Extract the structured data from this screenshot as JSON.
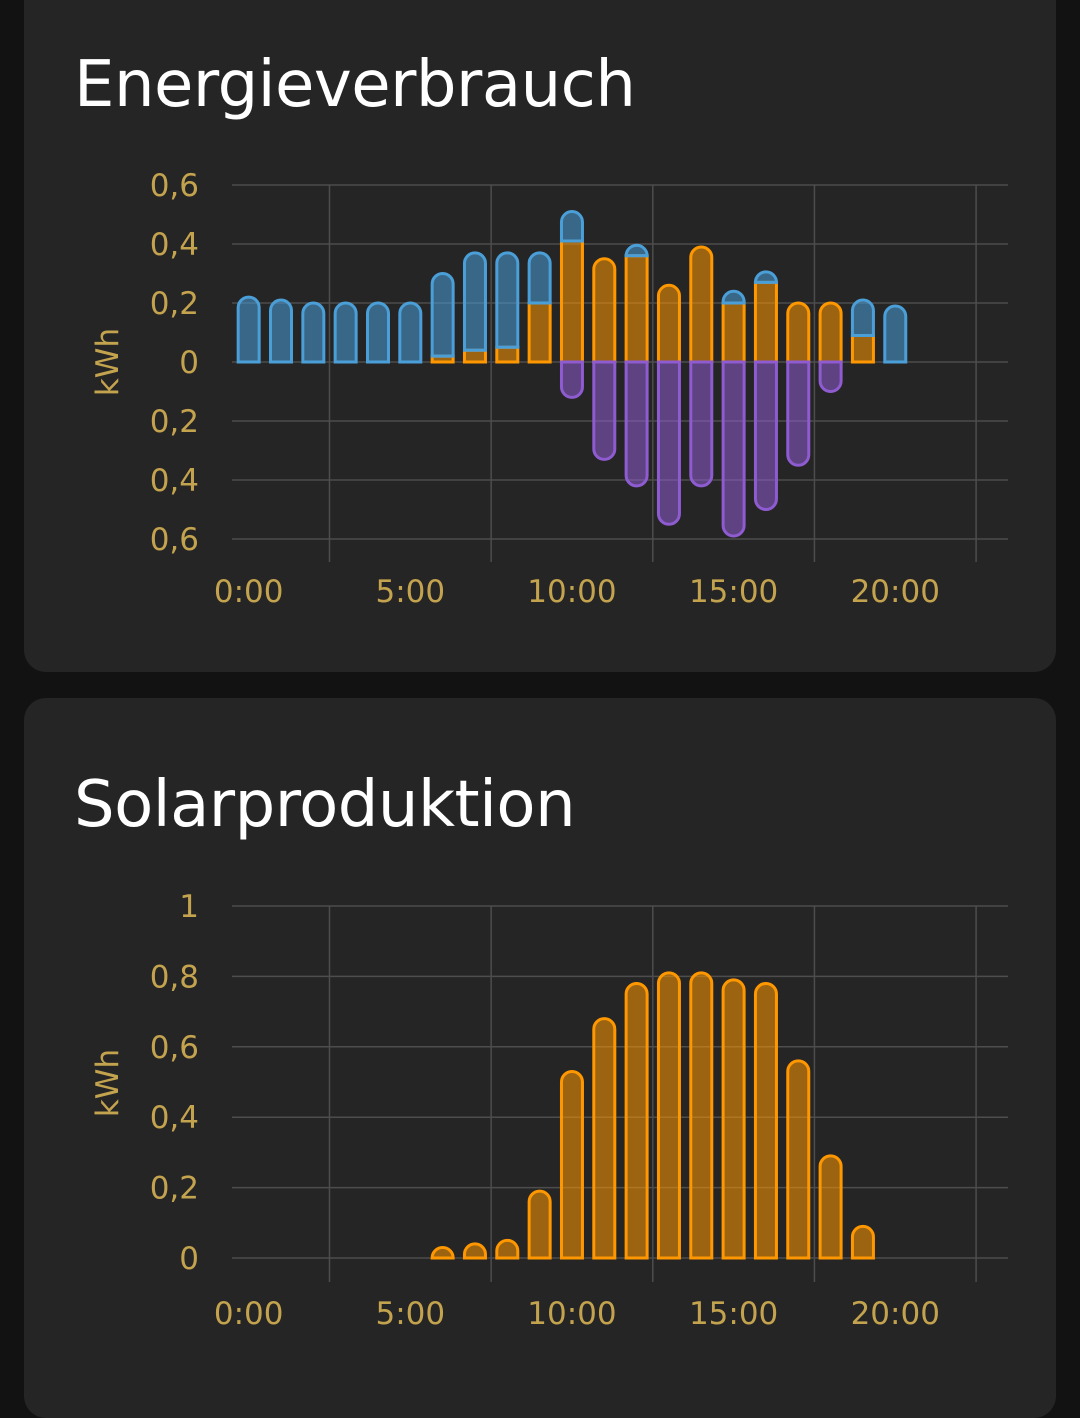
{
  "colors": {
    "grid_consumption": "#4b9fd8",
    "solar": "#ff9800",
    "return_to_grid": "#8e5bd0",
    "axis_text": "#c4a34f",
    "card_bg": "#252525",
    "page_bg": "#121212"
  },
  "energy_card": {
    "title": "Energieverbrauch",
    "chart_data": {
      "type": "bar",
      "stacked": true,
      "ylabel": "kWh",
      "ylim": [
        -0.6,
        0.6
      ],
      "y_ticks": [
        0.6,
        0.4,
        0.2,
        0,
        -0.2,
        -0.4,
        -0.6
      ],
      "y_tick_labels": [
        "0,6",
        "0,4",
        "0,2",
        "0",
        "0,2",
        "0,4",
        "0,6"
      ],
      "x_tick_labels": [
        "0:00",
        "5:00",
        "10:00",
        "15:00",
        "20:00"
      ],
      "categories": [
        "0:00",
        "1:00",
        "2:00",
        "3:00",
        "4:00",
        "5:00",
        "6:00",
        "7:00",
        "8:00",
        "9:00",
        "10:00",
        "11:00",
        "12:00",
        "13:00",
        "14:00",
        "15:00",
        "16:00",
        "17:00",
        "18:00",
        "19:00",
        "20:00"
      ],
      "series": [
        {
          "values": [
            0,
            0,
            0,
            0,
            0,
            0,
            0.02,
            0.04,
            0.05,
            0.2,
            0.41,
            0.35,
            0.36,
            0.26,
            0.39,
            0.2,
            0.27,
            0.2,
            0.2,
            0.09,
            0
          ]
        },
        {
          "values": [
            0.22,
            0.21,
            0.2,
            0.2,
            0.2,
            0.2,
            0.28,
            0.33,
            0.32,
            0.17,
            0.1,
            0,
            0.02,
            0,
            0,
            0.04,
            0.02,
            0,
            0,
            0.12,
            0.19
          ]
        },
        {
          "values": [
            0,
            0,
            0,
            0,
            0,
            0,
            0,
            0,
            0,
            0,
            -0.12,
            -0.33,
            -0.42,
            -0.55,
            -0.42,
            -0.59,
            -0.5,
            -0.35,
            -0.1,
            0,
            0
          ]
        }
      ]
    }
  },
  "solar_card": {
    "title": "Solarproduktion",
    "chart_data": {
      "type": "bar",
      "ylabel": "kWh",
      "ylim": [
        0,
        1
      ],
      "y_ticks": [
        1,
        0.8,
        0.6,
        0.4,
        0.2,
        0
      ],
      "y_tick_labels": [
        "1",
        "0,8",
        "0,6",
        "0,4",
        "0,2",
        "0"
      ],
      "x_tick_labels": [
        "0:00",
        "5:00",
        "10:00",
        "15:00",
        "20:00"
      ],
      "categories": [
        "0:00",
        "1:00",
        "2:00",
        "3:00",
        "4:00",
        "5:00",
        "6:00",
        "7:00",
        "8:00",
        "9:00",
        "10:00",
        "11:00",
        "12:00",
        "13:00",
        "14:00",
        "15:00",
        "16:00",
        "17:00",
        "18:00",
        "19:00",
        "20:00"
      ],
      "series": [
        {
          "values": [
            0,
            0,
            0,
            0,
            0,
            0,
            0.02,
            0.04,
            0.05,
            0.19,
            0.53,
            0.68,
            0.78,
            0.81,
            0.81,
            0.79,
            0.78,
            0.56,
            0.29,
            0.09,
            0
          ]
        }
      ]
    }
  }
}
